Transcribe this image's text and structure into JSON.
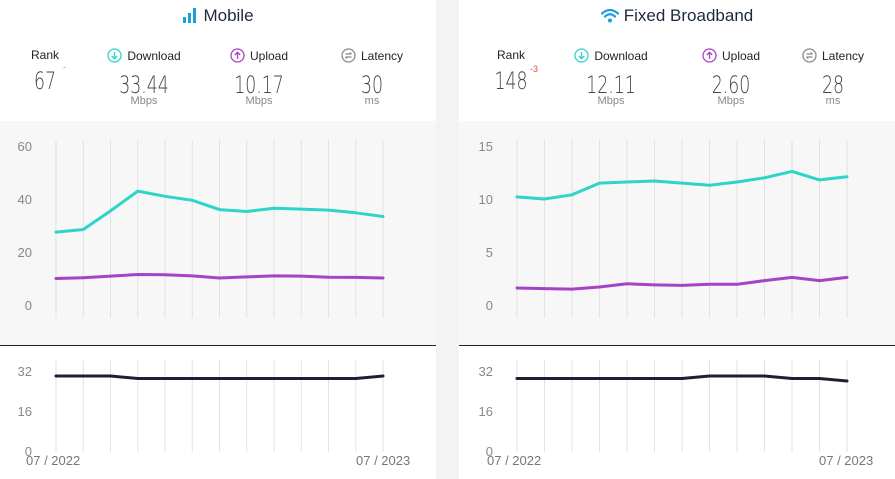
{
  "mobile": {
    "title": "Mobile",
    "icon": "signal-bars-icon",
    "stats": {
      "rank": {
        "label": "Rank",
        "value": "67",
        "change": "-"
      },
      "download": {
        "label": "Download",
        "value": "33.44",
        "unit": "Mbps",
        "icon": "download-arrow-icon"
      },
      "upload": {
        "label": "Upload",
        "value": "10.17",
        "unit": "Mbps",
        "icon": "upload-arrow-icon"
      },
      "latency": {
        "label": "Latency",
        "value": "30",
        "unit": "ms",
        "icon": "latency-icon"
      }
    },
    "x_start": "07 / 2022",
    "x_end": "07 / 2023"
  },
  "fixed": {
    "title": "Fixed Broadband",
    "icon": "wifi-icon",
    "stats": {
      "rank": {
        "label": "Rank",
        "value": "148",
        "change": "-3"
      },
      "download": {
        "label": "Download",
        "value": "12.11",
        "unit": "Mbps",
        "icon": "download-arrow-icon"
      },
      "upload": {
        "label": "Upload",
        "value": "2.60",
        "unit": "Mbps",
        "icon": "upload-arrow-icon"
      },
      "latency": {
        "label": "Latency",
        "value": "28",
        "unit": "ms",
        "icon": "latency-icon"
      }
    },
    "x_start": "07 / 2022",
    "x_end": "07 / 2023"
  },
  "colors": {
    "download": "#2dd4c8",
    "upload": "#a444c4",
    "latency": "#1c2033",
    "rank_change": "#e14b4b",
    "grid": "#e2e2e2",
    "chart_bg": "#f7f7f7"
  },
  "chart_data": [
    {
      "type": "line",
      "panel": "mobile",
      "chart": "speed",
      "x": [
        "07/2022",
        "08/2022",
        "09/2022",
        "10/2022",
        "11/2022",
        "12/2022",
        "01/2023",
        "02/2023",
        "03/2023",
        "04/2023",
        "05/2023",
        "06/2023",
        "07/2023"
      ],
      "series": [
        {
          "name": "Download",
          "values": [
            27.5,
            28.5,
            35.5,
            43,
            41,
            39.5,
            36,
            35.3,
            36.5,
            36.2,
            35.8,
            34.8,
            33.4
          ]
        },
        {
          "name": "Upload",
          "values": [
            10.0,
            10.3,
            10.9,
            11.5,
            11.4,
            11.0,
            10.2,
            10.6,
            11.0,
            10.9,
            10.5,
            10.4,
            10.2
          ]
        }
      ],
      "yticks": [
        0,
        20,
        40,
        60
      ],
      "ylim": [
        0,
        60
      ]
    },
    {
      "type": "line",
      "panel": "mobile",
      "chart": "latency",
      "x": [
        "07/2022",
        "08/2022",
        "09/2022",
        "10/2022",
        "11/2022",
        "12/2022",
        "01/2023",
        "02/2023",
        "03/2023",
        "04/2023",
        "05/2023",
        "06/2023",
        "07/2023"
      ],
      "series": [
        {
          "name": "Latency",
          "values": [
            30,
            30,
            30,
            29,
            29,
            29,
            29,
            29,
            29,
            29,
            29,
            29,
            30
          ]
        }
      ],
      "yticks": [
        0,
        16,
        32
      ],
      "ylim": [
        0,
        32
      ]
    },
    {
      "type": "line",
      "panel": "fixed",
      "chart": "speed",
      "x": [
        "07/2022",
        "08/2022",
        "09/2022",
        "10/2022",
        "11/2022",
        "12/2022",
        "01/2023",
        "02/2023",
        "03/2023",
        "04/2023",
        "05/2023",
        "06/2023",
        "07/2023"
      ],
      "series": [
        {
          "name": "Download",
          "values": [
            10.2,
            10.0,
            10.4,
            11.5,
            11.6,
            11.7,
            11.5,
            11.3,
            11.6,
            12.0,
            12.6,
            11.8,
            12.1
          ]
        },
        {
          "name": "Upload",
          "values": [
            1.6,
            1.55,
            1.5,
            1.7,
            2.0,
            1.9,
            1.85,
            1.95,
            1.95,
            2.3,
            2.6,
            2.3,
            2.6
          ]
        }
      ],
      "yticks": [
        0,
        5,
        10,
        15
      ],
      "ylim": [
        0,
        15
      ]
    },
    {
      "type": "line",
      "panel": "fixed",
      "chart": "latency",
      "x": [
        "07/2022",
        "08/2022",
        "09/2022",
        "10/2022",
        "11/2022",
        "12/2022",
        "01/2023",
        "02/2023",
        "03/2023",
        "04/2023",
        "05/2023",
        "06/2023",
        "07/2023"
      ],
      "series": [
        {
          "name": "Latency",
          "values": [
            29,
            29,
            29,
            29,
            29,
            29,
            29,
            30,
            30,
            30,
            29,
            29,
            28
          ]
        }
      ],
      "yticks": [
        0,
        16,
        32
      ],
      "ylim": [
        0,
        32
      ]
    }
  ]
}
